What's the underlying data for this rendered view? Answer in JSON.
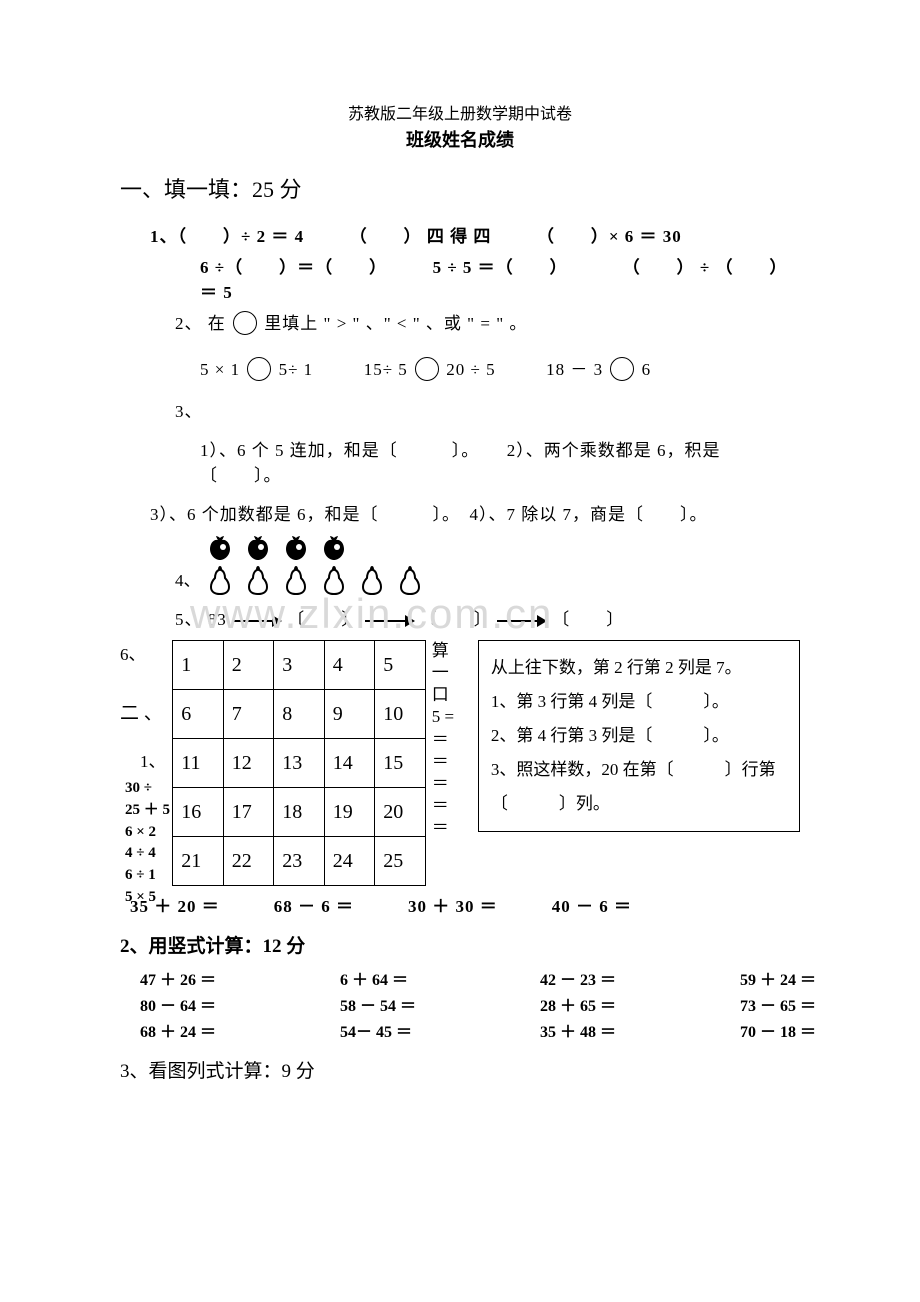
{
  "title_small": "苏教版二年级上册数学期中试卷",
  "title_bold": "班级姓名成绩",
  "section1": "一、填一填：25 分",
  "q1a": "1、（　　）÷ 2 ＝ 4　　　（　　） 四 得 四　　　（　　）× 6 ＝ 30",
  "q1b": "6 ÷（　　）＝（　　）　　　5 ÷ 5 ＝（　　）　　　　（　　） ÷ （　　）＝ 5",
  "q2a": "2、 在",
  "q2b": "里填上 \" > \" 、\" < \" 、或 \" = \" 。",
  "q2c_pre1": "5 × 1  ",
  "q2c_mid1": "5÷ 1",
  "q2c_pre2": "15÷ 5 ",
  "q2c_mid2": " 20 ÷ 5",
  "q2c_pre3": "18 － 3 ",
  "q2c_mid3": "6",
  "q3": "3、",
  "q3_1": "1）、6 个 5 连加，和是〔　　　〕。　　2）、两个乘数都是 6，积是〔　　〕。",
  "q3_3": "3）、6 个加数都是 6，和是〔　　　〕。　4）、7 除以 7，商是〔　　〕。",
  "q4_label": "4、",
  "q5": "5、 83",
  "q5_blank": "〔　　〕",
  "q6_label": "6、",
  "grid": [
    [
      "1",
      "2",
      "3",
      "4",
      "5"
    ],
    [
      "6",
      "7",
      "8",
      "9",
      "10"
    ],
    [
      "11",
      "12",
      "13",
      "14",
      "15"
    ],
    [
      "16",
      "17",
      "18",
      "19",
      "20"
    ],
    [
      "21",
      "22",
      "23",
      "24",
      "25"
    ]
  ],
  "info1": "从上往下数，第 2 行第 2 列是 7。",
  "info2": "1、第 3 行第 4 列是〔　　　〕。",
  "info3": "2、第 4 行第 3 列是〔　　　〕。",
  "info4": "3、照这样数，20 在第〔　　　〕行第〔　　　〕列。",
  "mid_text": "算\n一\n口\n5 =\n＝\n＝\n＝\n＝\n＝",
  "left_frag_1": "二 、",
  "left_frag_2": "1、",
  "left_frag_3": "30 ÷\n25 ＋ 5\n6 × 2\n4 ÷ 4\n6 ÷ 1\n5 × 5",
  "calc_row": "35 ＋ 20 ＝　　　68 － 6 ＝　　　30 ＋ 30 ＝　　　40 － 6 ＝",
  "sub2": "2、用竖式计算：12 分",
  "v1": [
    "47 ＋ 26 ＝",
    "6 ＋ 64 ＝",
    "42 － 23 ＝",
    "59 ＋ 24 ＝"
  ],
  "v2": [
    "80 － 64 ＝",
    "58 － 54 ＝",
    "28 ＋ 65 ＝",
    "73 － 65 ＝"
  ],
  "v3": [
    "68 ＋ 24 ＝",
    "54－ 45 ＝",
    "35 ＋ 48 ＝",
    "70 － 18 ＝"
  ],
  "sub3": "3、看图列式计算：9 分",
  "watermark": "www.zlxin.com.cn",
  "colors": {
    "text": "#000000",
    "bg": "#ffffff",
    "watermark": "#d9d9d9"
  }
}
